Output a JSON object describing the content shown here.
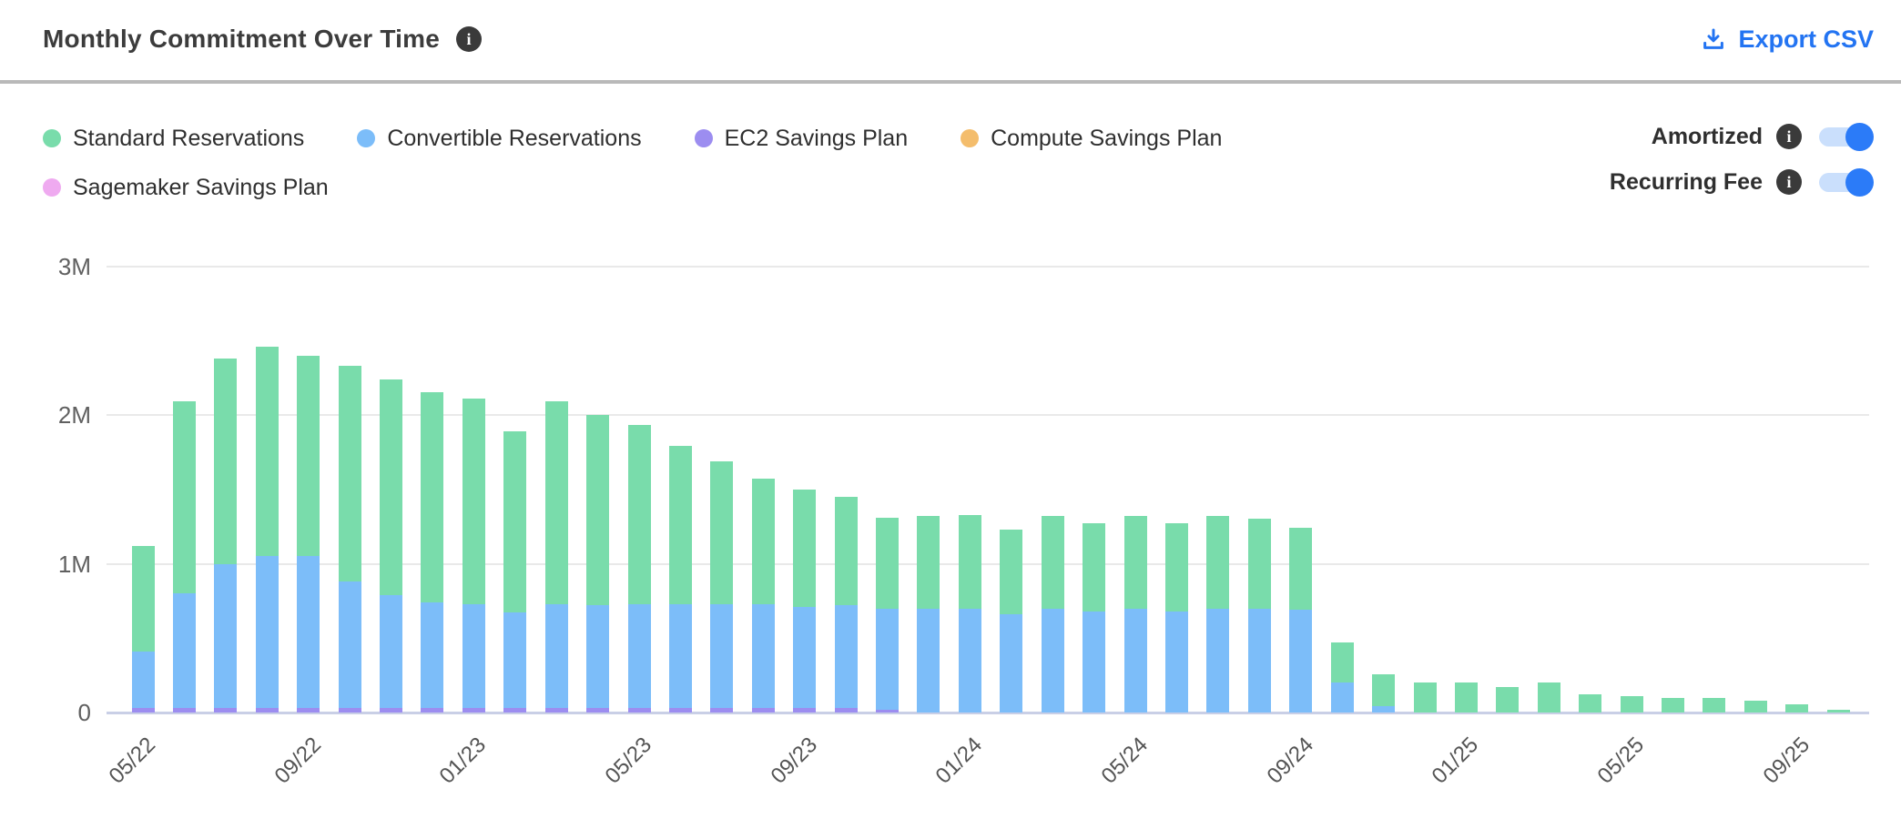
{
  "header": {
    "title": "Monthly Commitment Over Time",
    "info_glyph": "i",
    "export_label": "Export CSV"
  },
  "toggles": [
    {
      "label": "Amortized",
      "state": "on"
    },
    {
      "label": "Recurring Fee",
      "state": "on"
    }
  ],
  "accent_colors": {
    "link_blue": "#2374f2",
    "toggle_knob": "#2b7bf8",
    "toggle_track": "#cadffc"
  },
  "chart_data": {
    "type": "bar",
    "stacked": true,
    "title": "Monthly Commitment Over Time",
    "xlabel": "",
    "ylabel": "",
    "values_unit": "millions",
    "ylim": [
      0,
      3000000
    ],
    "grid": true,
    "legend_position": "top-left",
    "y_ticks": [
      "0",
      "1M",
      "2M",
      "3M"
    ],
    "x_tick_every": 4,
    "x_tick_labels": [
      "05/22",
      "09/22",
      "01/23",
      "05/23",
      "09/23",
      "01/24",
      "05/24",
      "09/24",
      "01/25",
      "05/25",
      "09/25"
    ],
    "categories": [
      "05/22",
      "06/22",
      "07/22",
      "08/22",
      "09/22",
      "10/22",
      "11/22",
      "12/22",
      "01/23",
      "02/23",
      "03/23",
      "04/23",
      "05/23",
      "06/23",
      "07/23",
      "08/23",
      "09/23",
      "10/23",
      "11/23",
      "12/23",
      "01/24",
      "02/24",
      "03/24",
      "04/24",
      "05/24",
      "06/24",
      "07/24",
      "08/24",
      "09/24",
      "10/24",
      "11/24",
      "12/24",
      "01/25",
      "02/25",
      "03/25",
      "04/25",
      "05/25",
      "06/25",
      "07/25",
      "08/25",
      "09/25",
      "10/25"
    ],
    "stack_order_bottom_up": [
      "Sagemaker Savings Plan",
      "Compute Savings Plan",
      "EC2 Savings Plan",
      "Convertible Reservations",
      "Standard Reservations"
    ],
    "series": [
      {
        "name": "Standard Reservations",
        "color": "#79dcab",
        "values": [
          0.71,
          1.29,
          1.38,
          1.41,
          1.35,
          1.45,
          1.45,
          1.41,
          1.38,
          1.22,
          1.36,
          1.28,
          1.2,
          1.06,
          0.96,
          0.84,
          0.79,
          0.73,
          0.61,
          0.62,
          0.63,
          0.57,
          0.62,
          0.59,
          0.62,
          0.59,
          0.62,
          0.6,
          0.55,
          0.27,
          0.22,
          0.2,
          0.2,
          0.17,
          0.2,
          0.12,
          0.11,
          0.1,
          0.1,
          0.08,
          0.055,
          0.02
        ]
      },
      {
        "name": "Convertible Reservations",
        "color": "#7cbdf9",
        "values": [
          0.38,
          0.77,
          0.97,
          1.02,
          1.02,
          0.85,
          0.76,
          0.71,
          0.7,
          0.64,
          0.7,
          0.69,
          0.7,
          0.7,
          0.7,
          0.7,
          0.68,
          0.69,
          0.68,
          0.7,
          0.7,
          0.66,
          0.7,
          0.68,
          0.7,
          0.68,
          0.7,
          0.7,
          0.69,
          0.2,
          0.04,
          0,
          0,
          0,
          0,
          0,
          0,
          0,
          0,
          0,
          0,
          0
        ]
      },
      {
        "name": "EC2 Savings Plan",
        "color": "#9c8df0",
        "values": [
          0.03,
          0.03,
          0.03,
          0.03,
          0.03,
          0.03,
          0.03,
          0.03,
          0.03,
          0.03,
          0.03,
          0.03,
          0.03,
          0.03,
          0.03,
          0.03,
          0.03,
          0.03,
          0.02,
          0,
          0,
          0,
          0,
          0,
          0,
          0,
          0,
          0,
          0,
          0,
          0,
          0,
          0,
          0,
          0,
          0,
          0,
          0,
          0,
          0,
          0,
          0
        ]
      },
      {
        "name": "Compute Savings Plan",
        "color": "#f4bd6c",
        "values": [
          0,
          0,
          0,
          0,
          0,
          0,
          0,
          0,
          0,
          0,
          0,
          0,
          0,
          0,
          0,
          0,
          0,
          0,
          0,
          0,
          0,
          0,
          0,
          0,
          0,
          0,
          0,
          0,
          0,
          0,
          0,
          0,
          0,
          0,
          0,
          0,
          0,
          0,
          0,
          0,
          0,
          0
        ]
      },
      {
        "name": "Sagemaker Savings Plan",
        "color": "#efaaf0",
        "values": [
          0,
          0,
          0,
          0,
          0,
          0,
          0,
          0,
          0,
          0,
          0,
          0,
          0,
          0,
          0,
          0,
          0,
          0,
          0,
          0,
          0,
          0,
          0,
          0,
          0,
          0,
          0,
          0,
          0,
          0,
          0,
          0,
          0,
          0,
          0,
          0,
          0,
          0,
          0,
          0,
          0,
          0
        ]
      }
    ]
  }
}
